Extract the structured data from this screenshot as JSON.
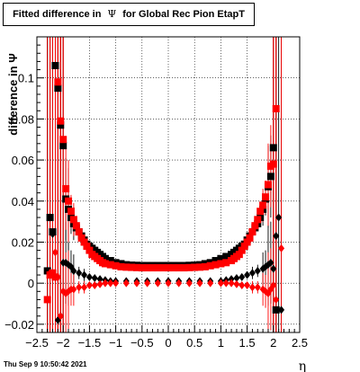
{
  "title": {
    "prefix": "Fitted difference in",
    "symbol": "Ψ",
    "suffix": "for Global Rec Pion EtapT"
  },
  "footer": {
    "timestamp": "Thu Sep  9 10:50:42 2021"
  },
  "chart_data": {
    "type": "scatter",
    "title": "Fitted difference in Ψ for Global Rec Pion EtapT",
    "xlabel": "η",
    "ylabel": "difference in Ψ",
    "xlim": [
      -2.5,
      2.5
    ],
    "ylim": [
      -0.024,
      0.12
    ],
    "grid": true,
    "x_ticks": [
      -2.5,
      -2,
      -1.5,
      -1,
      -0.5,
      0,
      0.5,
      1,
      1.5,
      2,
      2.5
    ],
    "x_tick_labels": [
      "−2.5",
      "−2",
      "−1.5",
      "−1",
      "−0.5",
      "0",
      "0.5",
      "1",
      "1.5",
      "2",
      "2.5"
    ],
    "y_ticks": [
      -0.02,
      0,
      0.02,
      0.04,
      0.06,
      0.08,
      0.1
    ],
    "y_tick_labels": [
      "−0.02",
      "0",
      "0.02",
      "0.04",
      "0.06",
      "0.08",
      "0.1"
    ],
    "colors": {
      "black_series": "#000000",
      "red_series": "#ff0000"
    },
    "series": [
      {
        "color": "#000000",
        "marker": "square",
        "x": [
          -2.3,
          -2.25,
          -2.2,
          -2.15,
          -2.1,
          -2.05,
          -2.0,
          -1.95,
          -1.9,
          -1.85,
          -1.8,
          -1.75,
          -1.7,
          -1.65,
          -1.6,
          -1.55,
          -1.5,
          -1.45,
          -1.4,
          -1.35,
          -1.3,
          -1.25,
          -1.2,
          -1.1,
          -1.0,
          -0.9,
          -0.8,
          -0.7,
          -0.6,
          -0.5,
          -0.4,
          -0.3,
          -0.2,
          -0.1,
          0.0,
          0.1,
          0.2,
          0.3,
          0.4,
          0.5,
          0.6,
          0.7,
          0.8,
          0.9,
          1.0,
          1.1,
          1.2,
          1.25,
          1.3,
          1.35,
          1.4,
          1.45,
          1.5,
          1.55,
          1.6,
          1.65,
          1.7,
          1.75,
          1.8,
          1.85,
          1.9,
          1.95,
          2.0,
          2.05
        ],
        "y": [
          0.006,
          0.032,
          0.025,
          0.106,
          0.095,
          0.077,
          0.067,
          0.041,
          0.036,
          0.032,
          0.029,
          0.027,
          0.025,
          0.023,
          0.021,
          0.019,
          0.018,
          0.017,
          0.016,
          0.015,
          0.014,
          0.013,
          0.012,
          0.011,
          0.01,
          0.0095,
          0.009,
          0.0088,
          0.0087,
          0.0086,
          0.0086,
          0.0086,
          0.0086,
          0.0086,
          0.0086,
          0.0086,
          0.0086,
          0.0086,
          0.0087,
          0.0088,
          0.009,
          0.0095,
          0.01,
          0.011,
          0.012,
          0.013,
          0.014,
          0.015,
          0.016,
          0.017,
          0.018,
          0.019,
          0.021,
          0.023,
          0.025,
          0.027,
          0.029,
          0.032,
          0.036,
          0.041,
          0.047,
          0.052,
          0.066,
          -0.013
        ]
      },
      {
        "color": "#000000",
        "marker": "diamond",
        "x": [
          -2.3,
          -2.25,
          -2.2,
          -2.15,
          -2.1,
          -2.05,
          -2.0,
          -1.95,
          -1.9,
          -1.85,
          -1.8,
          -1.7,
          -1.6,
          -1.5,
          -1.4,
          -1.3,
          -1.2,
          -1.1,
          -1.0,
          -0.8,
          -0.6,
          -0.4,
          -0.2,
          0.0,
          0.2,
          0.4,
          0.6,
          0.8,
          1.0,
          1.1,
          1.2,
          1.3,
          1.4,
          1.5,
          1.6,
          1.7,
          1.8,
          1.85,
          1.9,
          1.95,
          2.0,
          2.05,
          2.1,
          2.15
        ],
        "y": [
          0.006,
          0.032,
          0.024,
          0.003,
          -0.018,
          -0.016,
          0.01,
          0.01,
          0.009,
          0.008,
          0.006,
          0.005,
          0.004,
          0.003,
          0.0025,
          0.002,
          0.0015,
          0.001,
          0.001,
          0.001,
          0.001,
          0.001,
          0.001,
          0.001,
          0.001,
          0.001,
          0.001,
          0.001,
          0.001,
          0.0015,
          0.002,
          0.0025,
          0.003,
          0.004,
          0.005,
          0.006,
          0.007,
          0.008,
          0.009,
          0.01,
          0.007,
          0.023,
          0.032,
          -0.013
        ]
      },
      {
        "color": "#ff0000",
        "marker": "square",
        "x": [
          -2.3,
          -2.25,
          -2.2,
          -2.15,
          -2.1,
          -2.05,
          -2.0,
          -1.95,
          -1.9,
          -1.85,
          -1.8,
          -1.75,
          -1.7,
          -1.65,
          -1.6,
          -1.55,
          -1.5,
          -1.45,
          -1.4,
          -1.35,
          -1.3,
          -1.25,
          -1.2,
          -1.1,
          -1.0,
          -0.9,
          -0.8,
          -0.7,
          -0.6,
          -0.5,
          -0.4,
          -0.3,
          -0.2,
          -0.1,
          0.0,
          0.1,
          0.2,
          0.3,
          0.4,
          0.5,
          0.6,
          0.7,
          0.8,
          0.9,
          1.0,
          1.1,
          1.2,
          1.25,
          1.3,
          1.35,
          1.4,
          1.45,
          1.5,
          1.55,
          1.6,
          1.65,
          1.7,
          1.75,
          1.8,
          1.85,
          1.9,
          1.95,
          2.0,
          2.05
        ],
        "y": [
          -0.008,
          0.004,
          0.005,
          0.003,
          0.098,
          0.079,
          0.07,
          0.046,
          0.04,
          0.035,
          0.031,
          0.028,
          0.025,
          0.022,
          0.02,
          0.018,
          0.016,
          0.014,
          0.013,
          0.012,
          0.011,
          0.01,
          0.0095,
          0.009,
          0.0085,
          0.008,
          0.0078,
          0.0077,
          0.0076,
          0.0075,
          0.0075,
          0.0075,
          0.0075,
          0.0075,
          0.0075,
          0.0075,
          0.0075,
          0.0075,
          0.0076,
          0.0077,
          0.0078,
          0.008,
          0.0085,
          0.009,
          0.0095,
          0.01,
          0.011,
          0.012,
          0.013,
          0.014,
          0.016,
          0.018,
          0.02,
          0.022,
          0.025,
          0.028,
          0.031,
          0.035,
          0.038,
          0.042,
          0.048,
          0.057,
          0.058,
          0.085
        ]
      },
      {
        "color": "#ff0000",
        "marker": "diamond",
        "x": [
          -2.25,
          -2.15,
          -2.1,
          -2.05,
          -2.0,
          -1.95,
          -1.9,
          -1.85,
          -1.8,
          -1.7,
          -1.6,
          -1.5,
          -1.4,
          -1.3,
          -1.2,
          -1.1,
          -1.0,
          -0.8,
          -0.6,
          -0.4,
          -0.2,
          0.0,
          0.2,
          0.4,
          0.6,
          0.8,
          1.0,
          1.1,
          1.2,
          1.3,
          1.4,
          1.5,
          1.6,
          1.7,
          1.8,
          1.85,
          1.9,
          1.95,
          2.0,
          2.05,
          2.15
        ],
        "y": [
          0.005,
          0.015,
          0.003,
          -0.016,
          -0.004,
          -0.005,
          -0.004,
          -0.003,
          -0.003,
          -0.002,
          -0.002,
          -0.001,
          -0.001,
          -0.0005,
          0.0,
          0.0,
          0.0,
          0.0,
          0.0,
          0.0,
          0.0,
          0.0,
          0.0,
          0.0,
          0.0,
          0.0,
          0.0,
          0.0,
          0.0,
          -0.0005,
          -0.001,
          -0.001,
          -0.002,
          -0.002,
          -0.003,
          -0.004,
          -0.005,
          -0.003,
          -0.001,
          -0.008,
          0.017
        ]
      }
    ]
  }
}
